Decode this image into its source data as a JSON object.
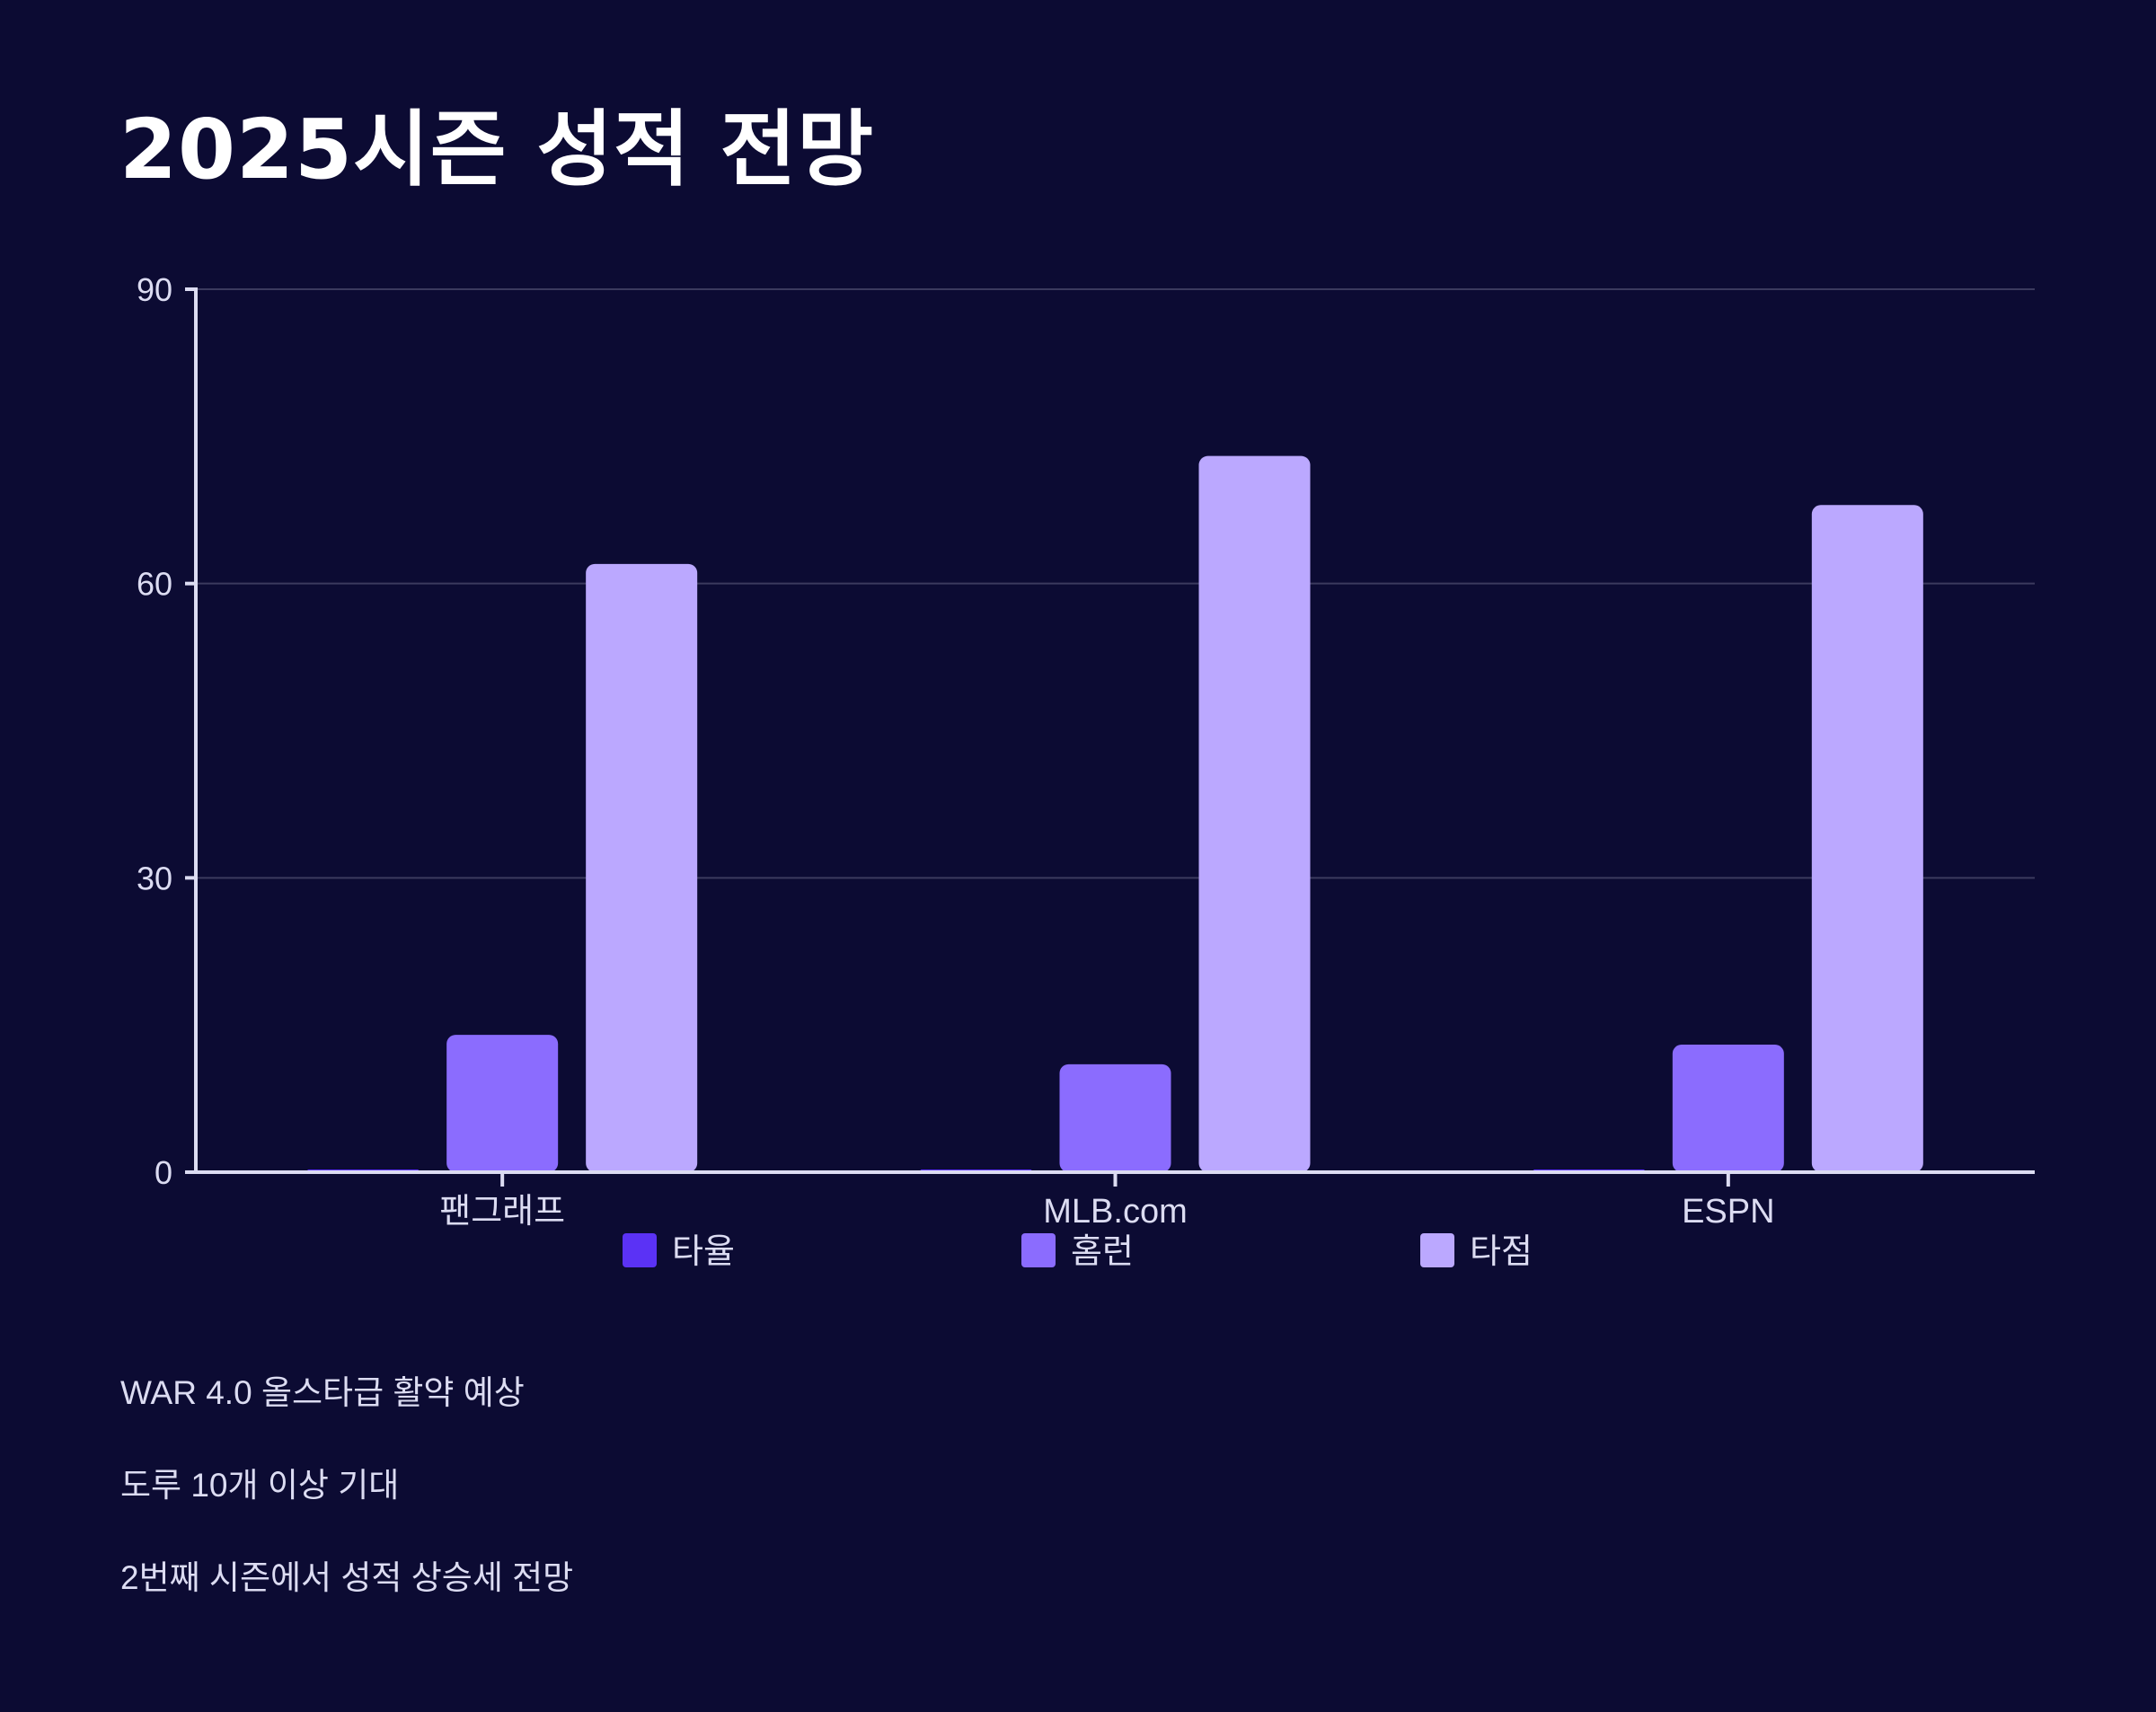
{
  "title": "2025시즌 성적 전망",
  "chart_data": {
    "type": "bar",
    "title": "2025시즌 성적 전망",
    "categories": [
      "팬그래프",
      "MLB.com",
      "ESPN"
    ],
    "series": [
      {
        "name": "타율",
        "values": [
          0.275,
          0.26,
          0.27
        ]
      },
      {
        "name": "홈런",
        "values": [
          14,
          11,
          13
        ]
      },
      {
        "name": "타점",
        "values": [
          62,
          73,
          68
        ]
      }
    ],
    "colors": [
      "#5b32f5",
      "#8b6cfe",
      "#bba8ff"
    ],
    "ylim": [
      0,
      90
    ],
    "yticks": [
      0,
      30,
      60,
      90
    ],
    "xlabel": "",
    "ylabel": "",
    "grid": true,
    "legend": "bottom"
  },
  "notes": [
    "WAR 4.0 올스타급 활약 예상",
    "도루 10개 이상 기대",
    "2번째 시즌에서 성적 상승세 전망"
  ],
  "theme": {
    "background": "#0c0b33",
    "axis": "#dcdcf2",
    "grid": "#3b3a5e",
    "text": "#dcdcf2"
  }
}
